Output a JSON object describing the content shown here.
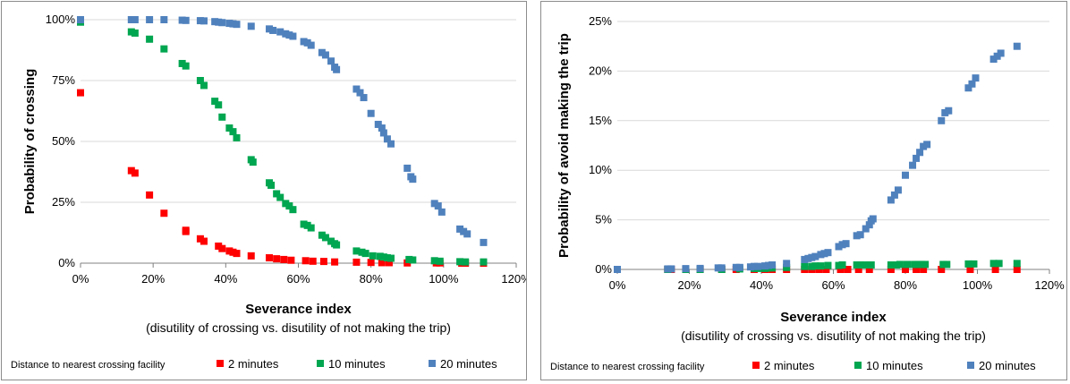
{
  "chart_data": [
    {
      "type": "scatter",
      "title": "",
      "xlabel": "Severance index",
      "subtitle": "(disutility of crossing vs. disutility of not making the trip)",
      "ylabel": "Probability of crossing",
      "xlim": [
        0,
        1.2
      ],
      "ylim": [
        0,
        1
      ],
      "x_ticks": [
        "0%",
        "20%",
        "40%",
        "60%",
        "80%",
        "100%",
        "120%"
      ],
      "y_ticks": [
        "0%",
        "25%",
        "50%",
        "75%",
        "100%"
      ],
      "grid": "horizontal",
      "legend_title": "Distance to nearest crossing facility",
      "legend_position": "bottom",
      "series": [
        {
          "name": "2 minutes",
          "color": "#ff0000",
          "points": [
            [
              0,
              0.7
            ],
            [
              0.14,
              0.38
            ],
            [
              0.15,
              0.37
            ],
            [
              0.19,
              0.28
            ],
            [
              0.23,
              0.205
            ],
            [
              0.29,
              0.135
            ],
            [
              0.29,
              0.13
            ],
            [
              0.33,
              0.1
            ],
            [
              0.34,
              0.09
            ],
            [
              0.38,
              0.07
            ],
            [
              0.39,
              0.06
            ],
            [
              0.41,
              0.05
            ],
            [
              0.42,
              0.045
            ],
            [
              0.43,
              0.04
            ],
            [
              0.47,
              0.03
            ],
            [
              0.52,
              0.022
            ],
            [
              0.54,
              0.018
            ],
            [
              0.56,
              0.015
            ],
            [
              0.58,
              0.012
            ],
            [
              0.62,
              0.01
            ],
            [
              0.64,
              0.008
            ],
            [
              0.67,
              0.007
            ],
            [
              0.7,
              0.005
            ],
            [
              0.76,
              0.004
            ],
            [
              0.8,
              0.003
            ],
            [
              0.83,
              0.002
            ],
            [
              0.85,
              0.002
            ],
            [
              0.9,
              0.001
            ],
            [
              0.98,
              0.001
            ],
            [
              0.99,
              0.001
            ],
            [
              1.05,
              0.0
            ],
            [
              1.06,
              0.0
            ],
            [
              1.11,
              0.0
            ]
          ]
        },
        {
          "name": "10 minutes",
          "color": "#00a650",
          "points": [
            [
              0,
              0.99
            ],
            [
              0.14,
              0.95
            ],
            [
              0.15,
              0.945
            ],
            [
              0.19,
              0.92
            ],
            [
              0.23,
              0.88
            ],
            [
              0.28,
              0.82
            ],
            [
              0.29,
              0.81
            ],
            [
              0.33,
              0.75
            ],
            [
              0.34,
              0.73
            ],
            [
              0.37,
              0.665
            ],
            [
              0.38,
              0.65
            ],
            [
              0.39,
              0.6
            ],
            [
              0.41,
              0.555
            ],
            [
              0.42,
              0.54
            ],
            [
              0.43,
              0.515
            ],
            [
              0.47,
              0.425
            ],
            [
              0.475,
              0.415
            ],
            [
              0.52,
              0.33
            ],
            [
              0.525,
              0.32
            ],
            [
              0.54,
              0.285
            ],
            [
              0.55,
              0.27
            ],
            [
              0.565,
              0.245
            ],
            [
              0.575,
              0.235
            ],
            [
              0.585,
              0.22
            ],
            [
              0.615,
              0.16
            ],
            [
              0.625,
              0.155
            ],
            [
              0.635,
              0.145
            ],
            [
              0.665,
              0.115
            ],
            [
              0.675,
              0.105
            ],
            [
              0.69,
              0.09
            ],
            [
              0.7,
              0.08
            ],
            [
              0.705,
              0.075
            ],
            [
              0.76,
              0.05
            ],
            [
              0.775,
              0.045
            ],
            [
              0.785,
              0.04
            ],
            [
              0.805,
              0.03
            ],
            [
              0.825,
              0.028
            ],
            [
              0.835,
              0.025
            ],
            [
              0.845,
              0.022
            ],
            [
              0.855,
              0.02
            ],
            [
              0.905,
              0.015
            ],
            [
              0.915,
              0.013
            ],
            [
              0.975,
              0.01
            ],
            [
              0.99,
              0.008
            ],
            [
              1.045,
              0.006
            ],
            [
              1.06,
              0.005
            ],
            [
              1.11,
              0.005
            ]
          ]
        },
        {
          "name": "20 minutes",
          "color": "#4f81bd",
          "points": [
            [
              0,
              1.0
            ],
            [
              0.14,
              1.0
            ],
            [
              0.15,
              1.0
            ],
            [
              0.19,
              1.0
            ],
            [
              0.23,
              1.0
            ],
            [
              0.28,
              0.998
            ],
            [
              0.29,
              0.997
            ],
            [
              0.33,
              0.996
            ],
            [
              0.34,
              0.995
            ],
            [
              0.37,
              0.992
            ],
            [
              0.38,
              0.99
            ],
            [
              0.39,
              0.988
            ],
            [
              0.41,
              0.985
            ],
            [
              0.42,
              0.983
            ],
            [
              0.43,
              0.981
            ],
            [
              0.47,
              0.973
            ],
            [
              0.52,
              0.962
            ],
            [
              0.53,
              0.956
            ],
            [
              0.55,
              0.95
            ],
            [
              0.565,
              0.942
            ],
            [
              0.575,
              0.937
            ],
            [
              0.585,
              0.932
            ],
            [
              0.615,
              0.91
            ],
            [
              0.625,
              0.905
            ],
            [
              0.635,
              0.895
            ],
            [
              0.665,
              0.865
            ],
            [
              0.675,
              0.855
            ],
            [
              0.69,
              0.83
            ],
            [
              0.7,
              0.805
            ],
            [
              0.705,
              0.795
            ],
            [
              0.76,
              0.715
            ],
            [
              0.77,
              0.7
            ],
            [
              0.78,
              0.68
            ],
            [
              0.8,
              0.615
            ],
            [
              0.82,
              0.57
            ],
            [
              0.83,
              0.555
            ],
            [
              0.835,
              0.535
            ],
            [
              0.845,
              0.51
            ],
            [
              0.855,
              0.49
            ],
            [
              0.9,
              0.39
            ],
            [
              0.91,
              0.355
            ],
            [
              0.915,
              0.345
            ],
            [
              0.975,
              0.245
            ],
            [
              0.985,
              0.235
            ],
            [
              0.995,
              0.21
            ],
            [
              1.045,
              0.14
            ],
            [
              1.055,
              0.13
            ],
            [
              1.065,
              0.12
            ],
            [
              1.11,
              0.085
            ]
          ]
        }
      ]
    },
    {
      "type": "scatter",
      "title": "",
      "xlabel": "Severance index",
      "subtitle": "(disutility of crossing vs. disutility of not making the trip)",
      "ylabel": "Probability of avoid making the trip",
      "xlim": [
        0,
        1.2
      ],
      "ylim": [
        0,
        0.25
      ],
      "x_ticks": [
        "0%",
        "20%",
        "40%",
        "60%",
        "80%",
        "100%",
        "120%"
      ],
      "y_ticks": [
        "0%",
        "5%",
        "10%",
        "15%",
        "20%",
        "25%"
      ],
      "grid": "horizontal",
      "legend_title": "Distance to nearest crossing facility",
      "legend_position": "bottom",
      "series": [
        {
          "name": "2 minutes",
          "color": "#ff0000",
          "points": [
            [
              0,
              0.0
            ],
            [
              0.14,
              0.0
            ],
            [
              0.15,
              0.0
            ],
            [
              0.19,
              0.0
            ],
            [
              0.23,
              0.0
            ],
            [
              0.29,
              0.0
            ],
            [
              0.33,
              0.0
            ],
            [
              0.38,
              0.0
            ],
            [
              0.41,
              0.0
            ],
            [
              0.43,
              0.0
            ],
            [
              0.47,
              0.0
            ],
            [
              0.52,
              0.0
            ],
            [
              0.54,
              0.0
            ],
            [
              0.56,
              0.0
            ],
            [
              0.58,
              0.0
            ],
            [
              0.62,
              0.0
            ],
            [
              0.64,
              0.0
            ],
            [
              0.67,
              0.0
            ],
            [
              0.7,
              0.0
            ],
            [
              0.76,
              0.0
            ],
            [
              0.8,
              0.0
            ],
            [
              0.83,
              0.0
            ],
            [
              0.85,
              0.0
            ],
            [
              0.9,
              0.0
            ],
            [
              0.98,
              0.0
            ],
            [
              1.05,
              0.0
            ],
            [
              1.11,
              0.0
            ]
          ]
        },
        {
          "name": "10 minutes",
          "color": "#00a650",
          "points": [
            [
              0,
              0.0
            ],
            [
              0.14,
              0.0
            ],
            [
              0.19,
              0.0
            ],
            [
              0.23,
              0.0
            ],
            [
              0.29,
              0.0
            ],
            [
              0.34,
              0.0005
            ],
            [
              0.38,
              0.001
            ],
            [
              0.39,
              0.001
            ],
            [
              0.41,
              0.001
            ],
            [
              0.42,
              0.0015
            ],
            [
              0.43,
              0.0015
            ],
            [
              0.47,
              0.002
            ],
            [
              0.52,
              0.003
            ],
            [
              0.54,
              0.003
            ],
            [
              0.55,
              0.0035
            ],
            [
              0.565,
              0.0035
            ],
            [
              0.585,
              0.004
            ],
            [
              0.615,
              0.004
            ],
            [
              0.625,
              0.0045
            ],
            [
              0.665,
              0.0045
            ],
            [
              0.675,
              0.0045
            ],
            [
              0.69,
              0.0045
            ],
            [
              0.705,
              0.0045
            ],
            [
              0.76,
              0.0045
            ],
            [
              0.775,
              0.0045
            ],
            [
              0.785,
              0.005
            ],
            [
              0.805,
              0.005
            ],
            [
              0.825,
              0.005
            ],
            [
              0.835,
              0.005
            ],
            [
              0.845,
              0.005
            ],
            [
              0.855,
              0.005
            ],
            [
              0.905,
              0.005
            ],
            [
              0.915,
              0.005
            ],
            [
              0.975,
              0.0055
            ],
            [
              0.99,
              0.0055
            ],
            [
              1.045,
              0.006
            ],
            [
              1.06,
              0.006
            ],
            [
              1.11,
              0.006
            ]
          ]
        },
        {
          "name": "20 minutes",
          "color": "#4f81bd",
          "points": [
            [
              0,
              0.0
            ],
            [
              0.14,
              0.0005
            ],
            [
              0.15,
              0.0005
            ],
            [
              0.19,
              0.0008
            ],
            [
              0.23,
              0.001
            ],
            [
              0.28,
              0.0015
            ],
            [
              0.29,
              0.0015
            ],
            [
              0.33,
              0.002
            ],
            [
              0.34,
              0.002
            ],
            [
              0.37,
              0.0025
            ],
            [
              0.38,
              0.003
            ],
            [
              0.39,
              0.003
            ],
            [
              0.41,
              0.0035
            ],
            [
              0.42,
              0.004
            ],
            [
              0.43,
              0.0045
            ],
            [
              0.47,
              0.006
            ],
            [
              0.52,
              0.01
            ],
            [
              0.53,
              0.011
            ],
            [
              0.54,
              0.012
            ],
            [
              0.55,
              0.013
            ],
            [
              0.565,
              0.015
            ],
            [
              0.575,
              0.016
            ],
            [
              0.585,
              0.017
            ],
            [
              0.615,
              0.023
            ],
            [
              0.625,
              0.025
            ],
            [
              0.635,
              0.026
            ],
            [
              0.665,
              0.034
            ],
            [
              0.675,
              0.035
            ],
            [
              0.69,
              0.041
            ],
            [
              0.7,
              0.045
            ],
            [
              0.705,
              0.049
            ],
            [
              0.71,
              0.051
            ],
            [
              0.76,
              0.07
            ],
            [
              0.77,
              0.075
            ],
            [
              0.78,
              0.08
            ],
            [
              0.8,
              0.095
            ],
            [
              0.82,
              0.105
            ],
            [
              0.83,
              0.112
            ],
            [
              0.84,
              0.118
            ],
            [
              0.85,
              0.124
            ],
            [
              0.86,
              0.126
            ],
            [
              0.9,
              0.15
            ],
            [
              0.91,
              0.158
            ],
            [
              0.92,
              0.16
            ],
            [
              0.975,
              0.183
            ],
            [
              0.985,
              0.187
            ],
            [
              0.995,
              0.193
            ],
            [
              1.045,
              0.212
            ],
            [
              1.055,
              0.215
            ],
            [
              1.065,
              0.218
            ],
            [
              1.11,
              0.225
            ]
          ]
        }
      ]
    }
  ]
}
